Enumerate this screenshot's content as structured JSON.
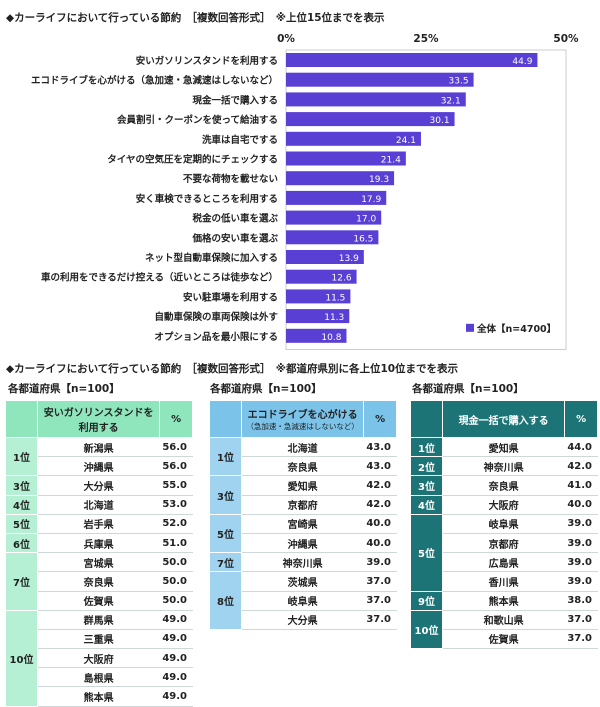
{
  "chart_data": {
    "type": "bar",
    "orientation": "horizontal",
    "title": "◆カーライフにおいて行っている節約　［複数回答形式］　※上位15位までを表示",
    "categories": [
      "安いガソリンスタンドを利用する",
      "エコドライブを心がける（急加速・急減速はしないなど）",
      "現金一括で購入する",
      "会員割引・クーポンを使って給油する",
      "洗車は自宅でする",
      "タイヤの空気圧を定期的にチェックする",
      "不要な荷物を載せない",
      "安く車検できるところを利用する",
      "税金の低い車を選ぶ",
      "価格の安い車を選ぶ",
      "ネット型自動車保険に加入する",
      "車の利用をできるだけ控える（近いところは徒歩など）",
      "安い駐車場を利用する",
      "自動車保険の車両保険は外す",
      "オプション品を最小限にする"
    ],
    "series": [
      {
        "name": "全体【n=4700】",
        "values": [
          44.9,
          33.5,
          32.1,
          30.1,
          24.1,
          21.4,
          19.3,
          17.9,
          17.0,
          16.5,
          13.9,
          12.6,
          11.5,
          11.3,
          10.8
        ],
        "labels": [
          "44.9",
          "33.5",
          "32.1",
          "30.1",
          "24.1",
          "21.4",
          "19.3",
          "17.9",
          "17.0",
          "16.5",
          "13.9",
          "12.6",
          "11.5",
          "11.3",
          "10.8"
        ]
      }
    ],
    "xlim": [
      0,
      50
    ],
    "ticks": [
      "0%",
      "25%",
      "50%"
    ],
    "legend": "bottom-right",
    "colors": {
      "bar": "#5a3fd4"
    }
  },
  "section2": {
    "title": "◆カーライフにおいて行っている節約　［複数回答形式］　※都道府県別に各上位10位までを表示"
  },
  "tables": [
    {
      "caption": "各都道府県【n=100】",
      "header": "安いガソリンスタンドを利用する",
      "sub": "",
      "pct": "%",
      "colors": {
        "head": "#8fe6bd",
        "rank": "#b5f0d4",
        "text": "#222"
      },
      "groups": [
        {
          "rank": "1位",
          "rows": [
            [
              "新潟県",
              "56.0"
            ],
            [
              "沖縄県",
              "56.0"
            ]
          ]
        },
        {
          "rank": "3位",
          "rows": [
            [
              "大分県",
              "55.0"
            ]
          ]
        },
        {
          "rank": "4位",
          "rows": [
            [
              "北海道",
              "53.0"
            ]
          ]
        },
        {
          "rank": "5位",
          "rows": [
            [
              "岩手県",
              "52.0"
            ]
          ]
        },
        {
          "rank": "6位",
          "rows": [
            [
              "兵庫県",
              "51.0"
            ]
          ]
        },
        {
          "rank": "7位",
          "rows": [
            [
              "宮城県",
              "50.0"
            ],
            [
              "奈良県",
              "50.0"
            ],
            [
              "佐賀県",
              "50.0"
            ]
          ]
        },
        {
          "rank": "10位",
          "rows": [
            [
              "群馬県",
              "49.0"
            ],
            [
              "三重県",
              "49.0"
            ],
            [
              "大阪府",
              "49.0"
            ],
            [
              "島根県",
              "49.0"
            ],
            [
              "熊本県",
              "49.0"
            ]
          ]
        }
      ]
    },
    {
      "caption": "各都道府県【n=100】",
      "header": "エコドライブを心がける",
      "sub": "（急加速・急減速はしないなど）",
      "pct": "%",
      "colors": {
        "head": "#7cc3ea",
        "rank": "#9fd3f0",
        "text": "#222"
      },
      "groups": [
        {
          "rank": "1位",
          "rows": [
            [
              "北海道",
              "43.0"
            ],
            [
              "奈良県",
              "43.0"
            ]
          ]
        },
        {
          "rank": "3位",
          "rows": [
            [
              "愛知県",
              "42.0"
            ],
            [
              "京都府",
              "42.0"
            ]
          ]
        },
        {
          "rank": "5位",
          "rows": [
            [
              "宮崎県",
              "40.0"
            ],
            [
              "沖縄県",
              "40.0"
            ]
          ]
        },
        {
          "rank": "7位",
          "rows": [
            [
              "神奈川県",
              "39.0"
            ]
          ]
        },
        {
          "rank": "8位",
          "rows": [
            [
              "茨城県",
              "37.0"
            ],
            [
              "岐阜県",
              "37.0"
            ],
            [
              "大分県",
              "37.0"
            ]
          ]
        }
      ]
    },
    {
      "caption": "各都道府県【n=100】",
      "header": "現金一括で購入する",
      "sub": "",
      "pct": "%",
      "colors": {
        "head": "#1c7476",
        "rank": "#1c7476",
        "text": "#fff"
      },
      "groups": [
        {
          "rank": "1位",
          "rows": [
            [
              "愛知県",
              "44.0"
            ]
          ]
        },
        {
          "rank": "2位",
          "rows": [
            [
              "神奈川県",
              "42.0"
            ]
          ]
        },
        {
          "rank": "3位",
          "rows": [
            [
              "奈良県",
              "41.0"
            ]
          ]
        },
        {
          "rank": "4位",
          "rows": [
            [
              "大阪府",
              "40.0"
            ]
          ]
        },
        {
          "rank": "5位",
          "rows": [
            [
              "岐阜県",
              "39.0"
            ],
            [
              "京都府",
              "39.0"
            ],
            [
              "広島県",
              "39.0"
            ],
            [
              "香川県",
              "39.0"
            ]
          ]
        },
        {
          "rank": "9位",
          "rows": [
            [
              "熊本県",
              "38.0"
            ]
          ]
        },
        {
          "rank": "10位",
          "rows": [
            [
              "和歌山県",
              "37.0"
            ],
            [
              "佐賀県",
              "37.0"
            ]
          ]
        }
      ]
    }
  ]
}
